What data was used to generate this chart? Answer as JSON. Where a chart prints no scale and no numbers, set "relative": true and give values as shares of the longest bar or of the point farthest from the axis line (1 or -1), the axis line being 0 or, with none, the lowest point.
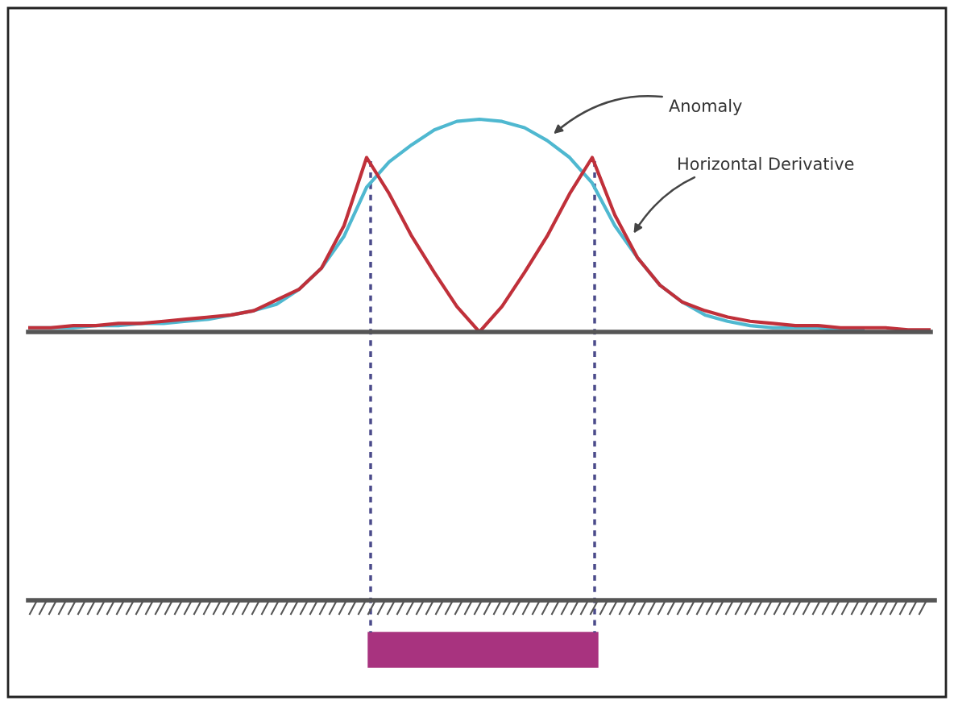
{
  "chart_data": {
    "type": "line",
    "relative": true,
    "categories": [
      null,
      null,
      null,
      null,
      null,
      null,
      null,
      null,
      null,
      null,
      null,
      null,
      null,
      null,
      null,
      null,
      null,
      null,
      null,
      null,
      null,
      null,
      null,
      null,
      null,
      null,
      null,
      null,
      null,
      null,
      null,
      null,
      null,
      null,
      null,
      null,
      null,
      null,
      null,
      null,
      null
    ],
    "series": [
      {
        "color": "#4fb8d0",
        "values": [
          0.02,
          0.02,
          0.02,
          0.03,
          0.03,
          0.04,
          0.04,
          0.05,
          0.06,
          0.08,
          0.1,
          0.13,
          0.2,
          0.3,
          0.45,
          0.68,
          0.8,
          0.88,
          0.95,
          0.99,
          1,
          0.99,
          0.96,
          0.9,
          0.82,
          0.7,
          0.5,
          0.35,
          0.22,
          0.14,
          0.08,
          0.05,
          0.03,
          0.02,
          0.02,
          0.02,
          0.01,
          0.01,
          null,
          null,
          null
        ]
      },
      {
        "color": "#c0303a",
        "values": [
          0.02,
          0.02,
          0.03,
          0.03,
          0.04,
          0.04,
          0.05,
          0.06,
          0.07,
          0.08,
          0.1,
          0.15,
          0.2,
          0.3,
          0.5,
          0.82,
          0.65,
          0.45,
          0.28,
          0.12,
          0,
          0.12,
          0.28,
          0.45,
          0.65,
          0.82,
          0.55,
          0.35,
          0.22,
          0.14,
          0.1,
          0.07,
          0.05,
          0.04,
          0.03,
          0.03,
          0.02,
          0.02,
          0.02,
          0.01,
          0.01
        ]
      }
    ],
    "annotations": [
      "Anomaly",
      "Horizontal Derivative"
    ],
    "grid": false,
    "marker": "none",
    "line_style": "solid"
  }
}
